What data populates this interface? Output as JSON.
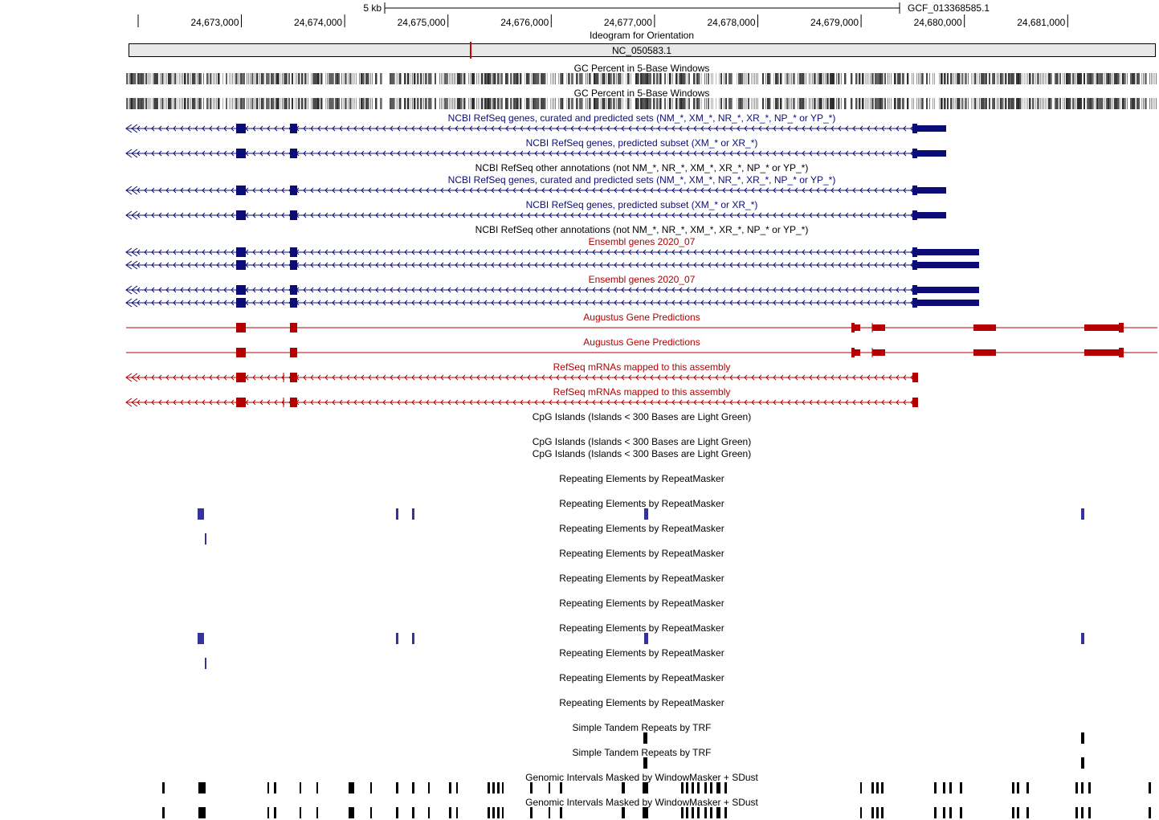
{
  "ruler": {
    "scale_label": "5 kb",
    "assembly": "GCF_013368585.1",
    "ticks": [
      {
        "pos": 24673000,
        "label": "24,673,000"
      },
      {
        "pos": 24674000,
        "label": "24,674,000"
      },
      {
        "pos": 24675000,
        "label": "24,675,000"
      },
      {
        "pos": 24676000,
        "label": "24,676,000"
      },
      {
        "pos": 24677000,
        "label": "24,677,000"
      },
      {
        "pos": 24678000,
        "label": "24,678,000"
      },
      {
        "pos": 24679000,
        "label": "24,679,000"
      },
      {
        "pos": 24680000,
        "label": "24,680,000"
      },
      {
        "pos": 24681000,
        "label": "24,681,000"
      }
    ]
  },
  "ideogram": {
    "title": "Ideogram for Orientation",
    "chrom": "NC_050583.1",
    "marker_color": "#cc0000"
  },
  "tracks": {
    "gc1": "GC Percent in 5-Base Windows",
    "gc2": "GC Percent in 5-Base Windows",
    "refseq_all_1": "NCBI RefSeq genes, curated and predicted sets (NM_*, XM_*, NR_*, XR_*, NP_* or YP_*)",
    "refseq_pred_1": "NCBI RefSeq genes, predicted subset (XM_* or XR_*)",
    "refseq_other_1": "NCBI RefSeq other annotations (not NM_*, NR_*, XM_*, XR_*, NP_* or YP_*)",
    "refseq_all_2": "NCBI RefSeq genes, curated and predicted sets (NM_*, XM_*, NR_*, XR_*, NP_* or YP_*)",
    "refseq_pred_2": "NCBI RefSeq genes, predicted subset (XM_* or XR_*)",
    "refseq_other_2": "NCBI RefSeq other annotations (not NM_*, NR_*, XM_*, XR_*, NP_* or YP_*)",
    "ensembl_1": "Ensembl genes 2020_07",
    "ensembl_2": "Ensembl genes 2020_07",
    "augustus_1": "Augustus Gene Predictions",
    "augustus_2": "Augustus Gene Predictions",
    "refseq_mrna_1": "RefSeq mRNAs mapped to this assembly",
    "refseq_mrna_2": "RefSeq mRNAs mapped to this assembly",
    "cpg_1": "CpG Islands (Islands < 300 Bases are Light Green)",
    "cpg_2": "CpG Islands (Islands < 300 Bases are Light Green)",
    "cpg_3": "CpG Islands (Islands < 300 Bases are Light Green)",
    "rmsk_1": "Repeating Elements by RepeatMasker",
    "rmsk_2": "Repeating Elements by RepeatMasker",
    "rmsk_3": "Repeating Elements by RepeatMasker",
    "rmsk_4": "Repeating Elements by RepeatMasker",
    "rmsk_5": "Repeating Elements by RepeatMasker",
    "rmsk_6": "Repeating Elements by RepeatMasker",
    "rmsk_7": "Repeating Elements by RepeatMasker",
    "rmsk_8": "Repeating Elements by RepeatMasker",
    "rmsk_9": "Repeating Elements by RepeatMasker",
    "rmsk_10": "Repeating Elements by RepeatMasker",
    "trf_1": "Simple Tandem Repeats by TRF",
    "trf_2": "Simple Tandem Repeats by TRF",
    "wm_1": "Genomic Intervals Masked by WindowMasker + SDust",
    "wm_2": "Genomic Intervals Masked by WindowMasker + SDust"
  },
  "colors": {
    "refseq": "#0c0c78",
    "ensembl_label": "#b00000",
    "augustus": "#b40000",
    "rmsk": "#333399",
    "black": "#000000",
    "ideogram_fill": "#e8e8e8"
  }
}
